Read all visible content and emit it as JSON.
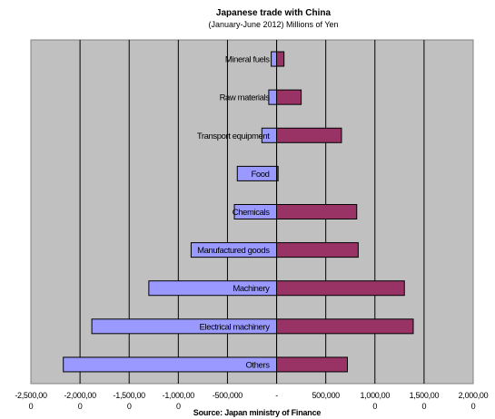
{
  "chart_data": {
    "type": "bar",
    "orientation": "horizontal",
    "title": "Japanese trade with China",
    "subtitle": "(January-June 2012) Millions of Yen",
    "source": "Source: Japan ministry of Finance",
    "categories": [
      "Mineral fuels",
      "Raw materials",
      "Transport equipment",
      "Food",
      "Chemicals",
      "Manufactured goods",
      "Machinery",
      "Electrical machinery",
      "Others"
    ],
    "series": [
      {
        "values": [
          -55000,
          -80000,
          -150000,
          -400000,
          -430000,
          -870000,
          -1300000,
          -1880000,
          -2170000
        ],
        "color": "#9999ff"
      },
      {
        "values": [
          75000,
          250000,
          660000,
          15000,
          815000,
          830000,
          1300000,
          1390000,
          720000
        ],
        "color": "#993366"
      }
    ],
    "xlim": [
      -2500000,
      2000000
    ],
    "ticks": [
      {
        "value": -2500000,
        "line1": "-2,500,00",
        "line2": "0"
      },
      {
        "value": -2000000,
        "line1": "-2,000,00",
        "line2": "0"
      },
      {
        "value": -1500000,
        "line1": "-1,500,00",
        "line2": "0"
      },
      {
        "value": -1000000,
        "line1": "-1,000,00",
        "line2": "0"
      },
      {
        "value": -500000,
        "line1": "-500,000",
        "line2": ""
      },
      {
        "value": 0,
        "line1": "-",
        "line2": ""
      },
      {
        "value": 500000,
        "line1": "500,000",
        "line2": ""
      },
      {
        "value": 1000000,
        "line1": "1,000,00",
        "line2": "0"
      },
      {
        "value": 1500000,
        "line1": "1,500,00",
        "line2": "0"
      },
      {
        "value": 2000000,
        "line1": "2,000,00",
        "line2": "0"
      }
    ],
    "plot_background": "#c0c0c0",
    "gridlines": true,
    "legend": "none"
  }
}
